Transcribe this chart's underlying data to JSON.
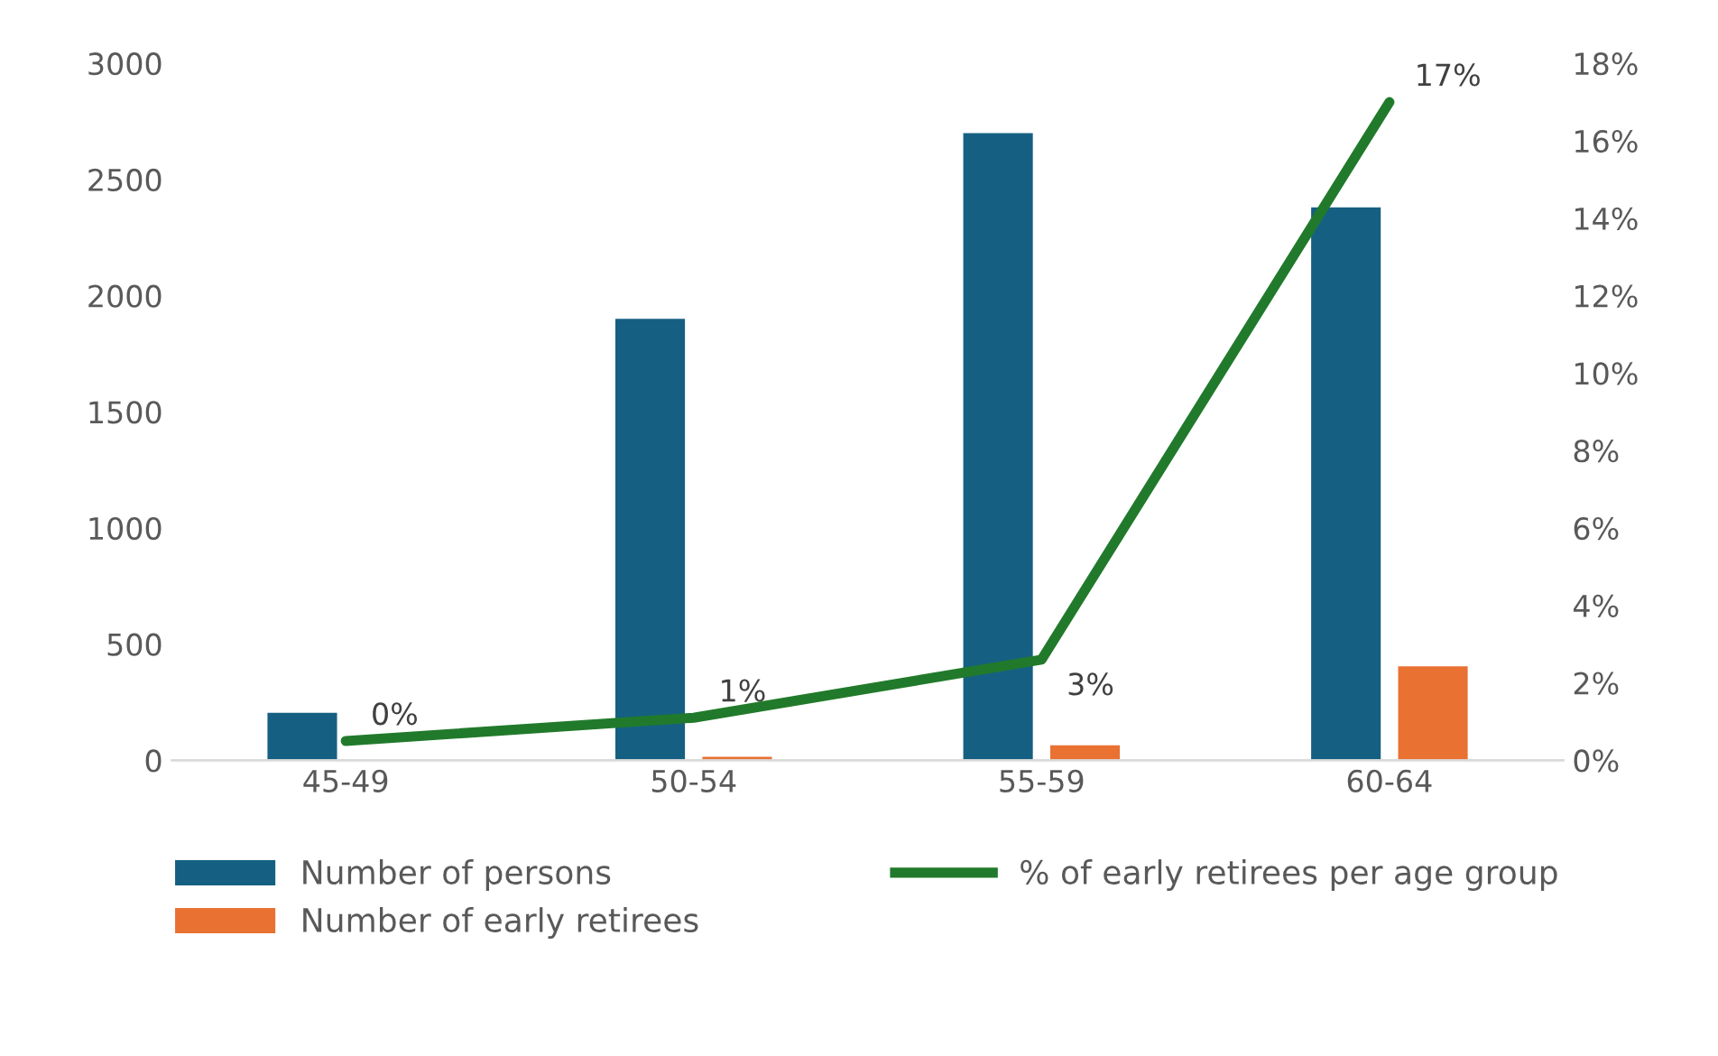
{
  "chart_data": {
    "type": "bar",
    "categories": [
      "45-49",
      "50-54",
      "55-59",
      "60-64"
    ],
    "series": [
      {
        "name": "Number of persons",
        "color": "#156082",
        "values": [
          205,
          1900,
          2700,
          2380
        ]
      },
      {
        "name": "Number of early retirees",
        "color": "#e97132",
        "values": [
          null,
          15,
          65,
          405
        ]
      },
      {
        "name": "% of early retirees per age group",
        "type": "line",
        "axis": "y2",
        "color": "#217a2b",
        "values": [
          0.5,
          1.1,
          2.6,
          17
        ],
        "value_labels": [
          "0%",
          "1%",
          "3%",
          "17%"
        ]
      }
    ],
    "ylim": [
      0,
      3000
    ],
    "yticks": [
      0,
      500,
      1000,
      1500,
      2000,
      2500,
      3000
    ],
    "y2lim": [
      0,
      18
    ],
    "y2ticks": [
      {
        "value": 0,
        "label": "0%"
      },
      {
        "value": 2,
        "label": "2%"
      },
      {
        "value": 4,
        "label": "4%"
      },
      {
        "value": 6,
        "label": "6%"
      },
      {
        "value": 8,
        "label": "8%"
      },
      {
        "value": 10,
        "label": "10%"
      },
      {
        "value": 12,
        "label": "12%"
      },
      {
        "value": 14,
        "label": "14%"
      },
      {
        "value": 16,
        "label": "16%"
      },
      {
        "value": 18,
        "label": "18%"
      }
    ],
    "grid": false,
    "legend": "bottom"
  }
}
